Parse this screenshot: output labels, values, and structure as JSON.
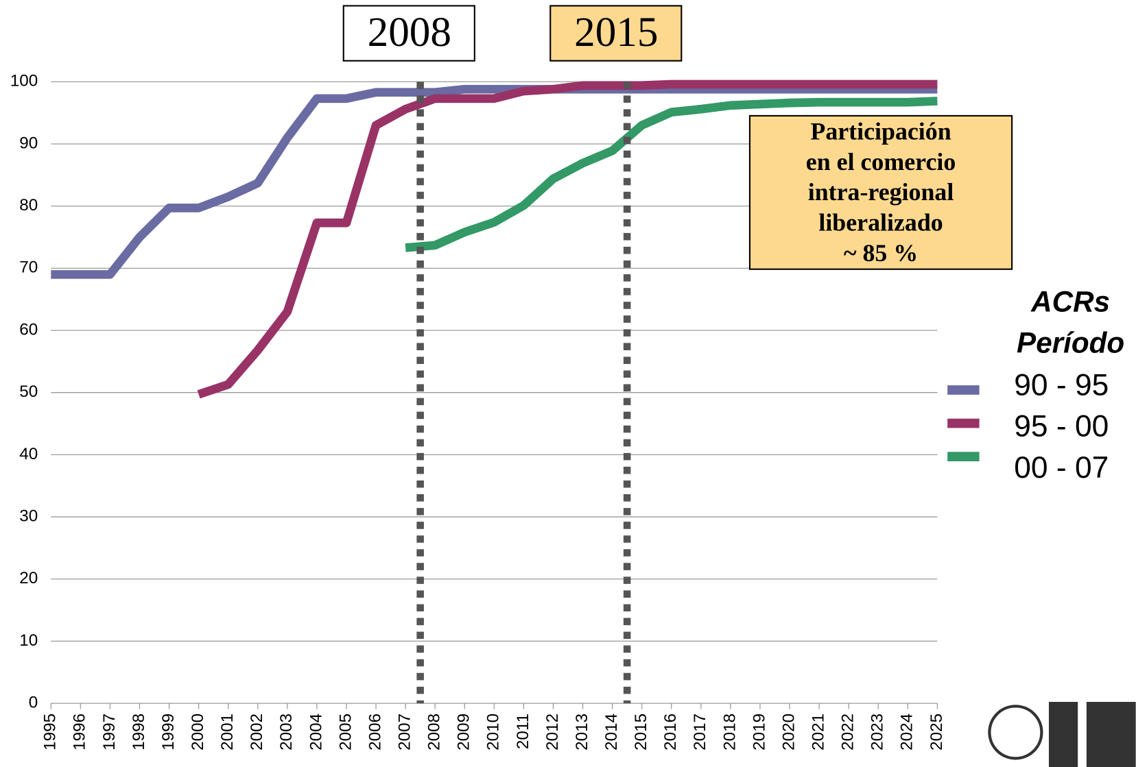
{
  "chart_data": {
    "type": "line",
    "x": [
      1995,
      1996,
      1997,
      1998,
      1999,
      2000,
      2001,
      2002,
      2003,
      2004,
      2005,
      2006,
      2007,
      2008,
      2009,
      2010,
      2011,
      2012,
      2013,
      2014,
      2015,
      2016,
      2017,
      2018,
      2019,
      2020,
      2021,
      2022,
      2023,
      2024,
      2025
    ],
    "xlim": [
      1995,
      2025
    ],
    "xticks": [
      1995,
      1996,
      1997,
      1998,
      1999,
      2000,
      2001,
      2002,
      2003,
      2004,
      2005,
      2006,
      2007,
      2008,
      2009,
      2010,
      2011,
      2012,
      2013,
      2014,
      2015,
      2016,
      2017,
      2018,
      2019,
      2020,
      2021,
      2022,
      2023,
      2024,
      2025
    ],
    "ylim": [
      0,
      100
    ],
    "yticks": [
      0,
      10,
      20,
      30,
      40,
      50,
      60,
      70,
      80,
      90,
      100
    ],
    "grid": true,
    "legend_title": [
      "ACRs",
      "Período"
    ],
    "series": [
      {
        "name": "90 - 95",
        "color": "#6b6ba3",
        "values": [
          69,
          69,
          69,
          75,
          79.7,
          79.7,
          81.5,
          83.7,
          91,
          97.3,
          97.3,
          98.3,
          98.3,
          98.3,
          98.8,
          98.8,
          98.8,
          98.8,
          98.8,
          98.8,
          98.8,
          98.8,
          98.8,
          98.8,
          98.8,
          98.8,
          98.8,
          98.8,
          98.8,
          98.8,
          98.8
        ]
      },
      {
        "name": "95 - 00",
        "color": "#993366",
        "values": [
          null,
          null,
          null,
          null,
          null,
          49.7,
          51.3,
          56.8,
          63,
          77.3,
          77.3,
          93,
          95.6,
          97.3,
          97.3,
          97.3,
          98.5,
          98.8,
          99.4,
          99.4,
          99.4,
          99.6,
          99.6,
          99.6,
          99.6,
          99.6,
          99.6,
          99.6,
          99.6,
          99.6,
          99.6
        ]
      },
      {
        "name": "00 - 07",
        "color": "#339966",
        "values": [
          null,
          null,
          null,
          null,
          null,
          null,
          null,
          null,
          null,
          null,
          null,
          null,
          73.3,
          73.7,
          75.8,
          77.4,
          80.1,
          84.4,
          86.9,
          88.9,
          93,
          95.1,
          95.6,
          96.2,
          96.4,
          96.6,
          96.7,
          96.7,
          96.7,
          96.7,
          96.9
        ]
      }
    ],
    "markers": [
      {
        "text": "2008",
        "x": 2007.5,
        "color": "#ffffff"
      },
      {
        "text": "2015",
        "x": 2014.5,
        "color": "#fdd98f"
      }
    ],
    "annotation": {
      "lines": [
        "Participación",
        "en el comercio",
        "intra-regional",
        "liberalizado",
        "~ 85 %"
      ],
      "color": "#fdd98f"
    }
  }
}
